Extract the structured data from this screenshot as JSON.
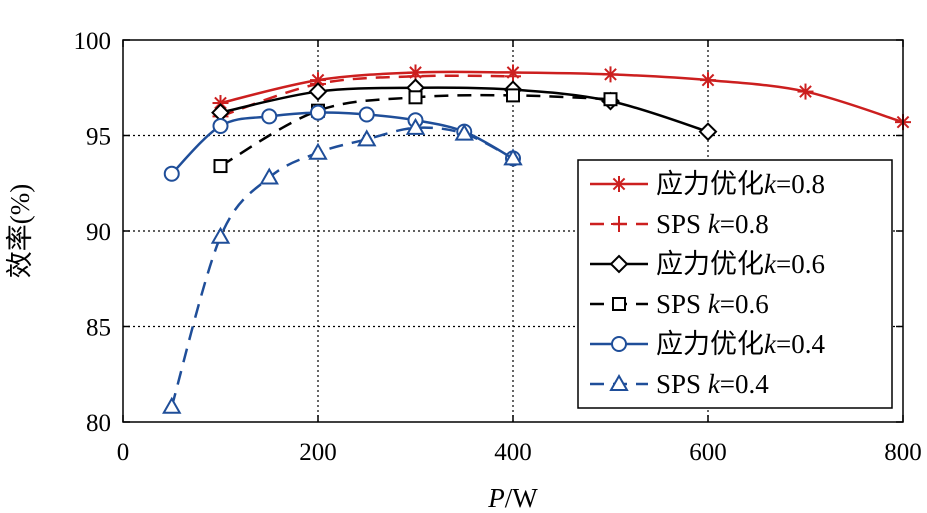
{
  "chart_data": {
    "type": "line",
    "xlabel_italic": "P",
    "xlabel_rest": "/W",
    "ylabel": "效率(%)",
    "xlim": [
      0,
      800
    ],
    "ylim": [
      80,
      100
    ],
    "xticks": [
      0,
      200,
      400,
      600,
      800
    ],
    "yticks": [
      80,
      85,
      90,
      95,
      100
    ],
    "grid": true,
    "legend_position": "right",
    "series": [
      {
        "name_prefix": "应力优化",
        "name_k": "k",
        "name_suffix": "=0.8",
        "color": "#cc1f1f",
        "dash": "solid",
        "marker": "asterisk",
        "x": [
          100,
          200,
          300,
          400,
          500,
          600,
          700,
          800
        ],
        "y": [
          96.7,
          97.9,
          98.3,
          98.3,
          98.2,
          97.9,
          97.3,
          95.7
        ]
      },
      {
        "name_prefix": "SPS ",
        "name_k": "k",
        "name_suffix": "=0.8",
        "color": "#cc1f1f",
        "dash": "dashed",
        "marker": "plus",
        "x": [
          100,
          200,
          300,
          400
        ],
        "y": [
          96.0,
          97.7,
          98.1,
          98.1
        ]
      },
      {
        "name_prefix": "应力优化",
        "name_k": "k",
        "name_suffix": "=0.6",
        "color": "#000000",
        "dash": "solid",
        "marker": "diamond",
        "x": [
          100,
          200,
          300,
          400,
          500,
          600
        ],
        "y": [
          96.2,
          97.3,
          97.5,
          97.4,
          96.8,
          95.2
        ]
      },
      {
        "name_prefix": "SPS ",
        "name_k": "k",
        "name_suffix": "=0.6",
        "color": "#000000",
        "dash": "dashed",
        "marker": "square",
        "x": [
          100,
          200,
          300,
          400,
          500
        ],
        "y": [
          93.4,
          96.3,
          97.0,
          97.1,
          96.9
        ]
      },
      {
        "name_prefix": "应力优化",
        "name_k": "k",
        "name_suffix": "=0.4",
        "color": "#1f4e99",
        "dash": "solid",
        "marker": "circle",
        "x": [
          50,
          100,
          150,
          200,
          250,
          300,
          350,
          400
        ],
        "y": [
          93.0,
          95.5,
          96.0,
          96.2,
          96.1,
          95.8,
          95.2,
          93.8
        ]
      },
      {
        "name_prefix": "SPS ",
        "name_k": "k",
        "name_suffix": "=0.4",
        "color": "#1f4e99",
        "dash": "dashed",
        "marker": "triangle",
        "x": [
          50,
          100,
          150,
          200,
          250,
          300,
          350,
          400
        ],
        "y": [
          80.8,
          89.7,
          92.8,
          94.1,
          94.8,
          95.4,
          95.1,
          93.8
        ]
      }
    ]
  }
}
